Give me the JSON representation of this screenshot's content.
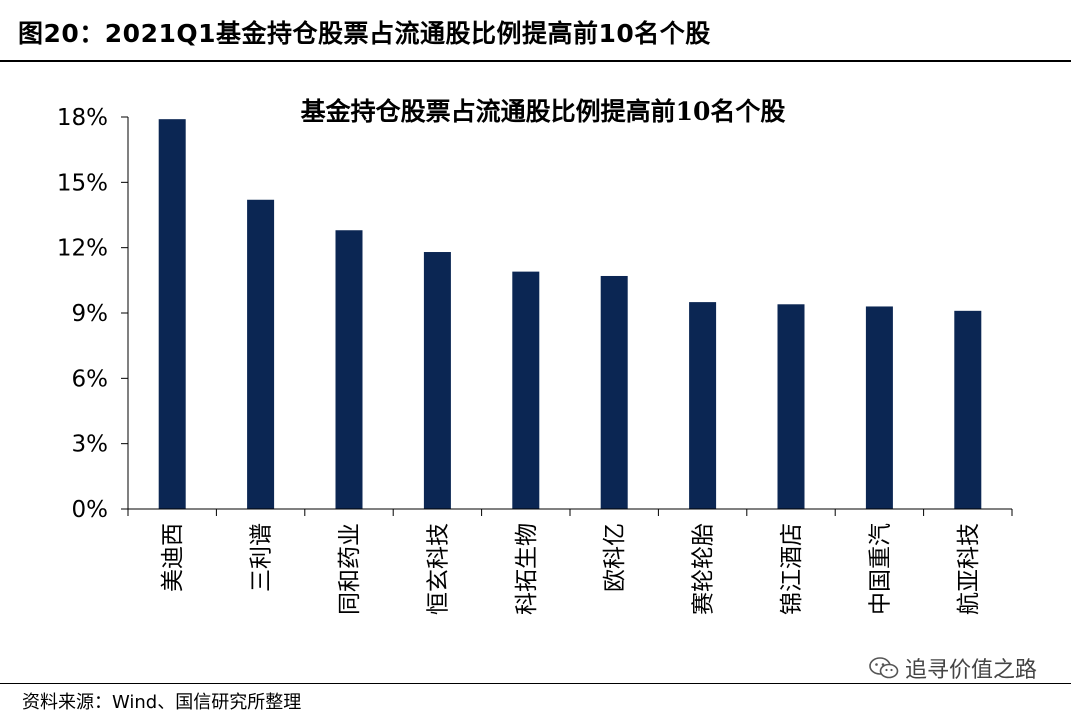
{
  "figure": {
    "title": "图20：2021Q1基金持仓股票占流通股比例提高前10名个股",
    "source": "资料来源：Wind、国信研究所整理",
    "watermark": "追寻价值之路",
    "watermark_icon": "wechat-icon"
  },
  "chart_data": {
    "type": "bar",
    "title": "基金持仓股票占流通股比例提高前10名个股",
    "xlabel": "",
    "ylabel": "",
    "categories": [
      "美迪西",
      "三利谱",
      "同和药业",
      "恒玄科技",
      "科拓生物",
      "欧科亿",
      "赛轮轮胎",
      "锦江酒店",
      "中国重汽",
      "航亚科技"
    ],
    "values": [
      17.9,
      14.2,
      12.8,
      11.8,
      10.9,
      10.7,
      9.5,
      9.4,
      9.3,
      9.1
    ],
    "ylim": [
      0,
      18
    ],
    "yticks": [
      0,
      3,
      6,
      9,
      12,
      15,
      18
    ],
    "ytick_labels": [
      "0%",
      "3%",
      "6%",
      "9%",
      "12%",
      "15%",
      "18%"
    ],
    "bar_color": "#0B2653",
    "grid": false,
    "legend": "none"
  }
}
